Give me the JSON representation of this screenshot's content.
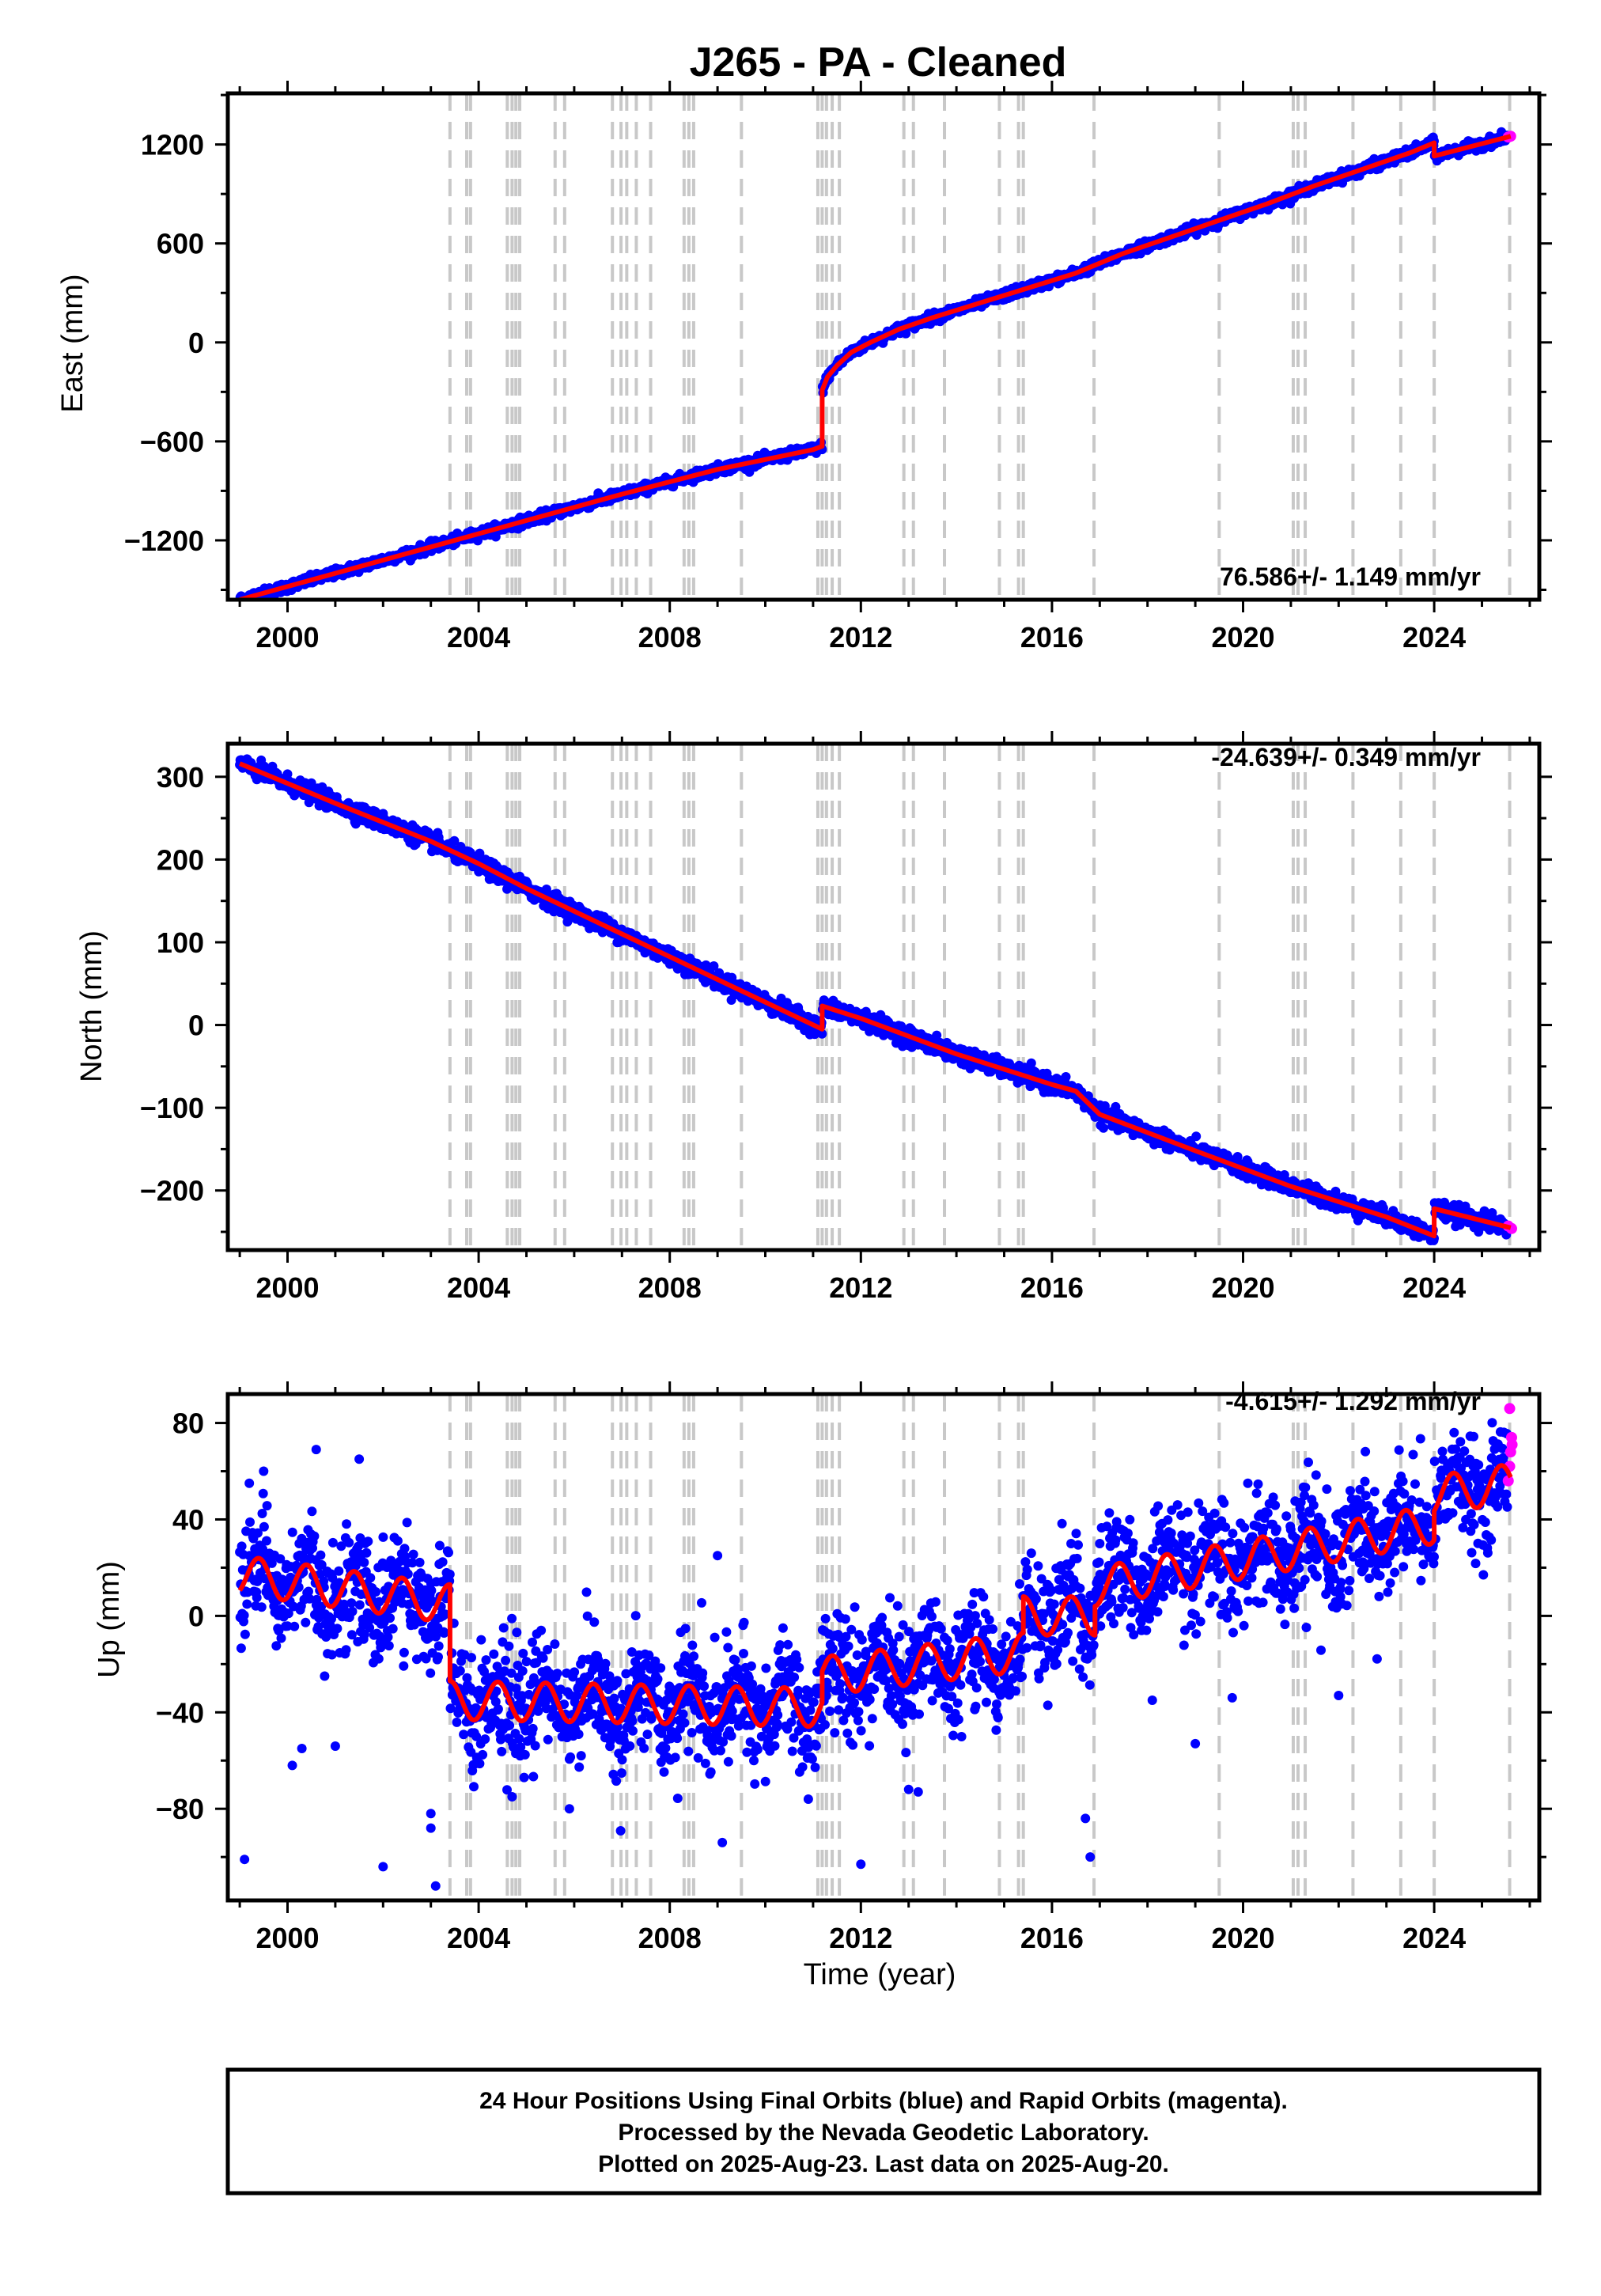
{
  "title": "J265  - PA - Cleaned",
  "footer": {
    "line1": "24 Hour Positions Using Final Orbits (blue) and Rapid Orbits (magenta).",
    "line2": "Processed by the Nevada Geodetic Laboratory.",
    "line3": "Plotted on 2025-Aug-23. Last data on 2025-Aug-20."
  },
  "colors": {
    "final_orbits": "#0000ff",
    "rapid_orbits": "#ff00ff",
    "model": "#ff0000",
    "steps": "#c8c8c8"
  },
  "chart_data": [
    {
      "type": "scatter",
      "ylabel": "East (mm)",
      "xlabel": "",
      "rate": "76.586+/- 1.149 mm/yr",
      "rate_position": "bottom-right",
      "xlim": [
        1998.75,
        2026.2
      ],
      "ylim": [
        -1560,
        1510
      ],
      "xticks": [
        2000,
        2004,
        2008,
        2012,
        2016,
        2020,
        2024
      ],
      "yticks": [
        -1200,
        -600,
        0,
        600,
        1200
      ],
      "yticklabels": [
        "−1200",
        "−600",
        "0",
        "600",
        "1200"
      ],
      "xticklabels": [
        "2000",
        "2004",
        "2008",
        "2012",
        "2016",
        "2020",
        "2024"
      ],
      "model": {
        "x": [
          1999.0,
          2001.0,
          2003.0,
          2005.0,
          2007.0,
          2009.0,
          2011.0,
          2011.19,
          2011.19,
          2011.3,
          2011.5,
          2011.8,
          2012.2,
          2012.8,
          2013.5,
          2014.5,
          2015.5,
          2016.5,
          2017.5,
          2018.5,
          2019.5,
          2020.5,
          2021.5,
          2022.5,
          2023.5,
          2024.0,
          2024.0,
          2025.6
        ],
        "y": [
          -1560,
          -1400,
          -1240,
          -1080,
          -920,
          -770,
          -650,
          -630,
          -290,
          -210,
          -140,
          -60,
          0,
          80,
          150,
          240,
          330,
          420,
          540,
          640,
          740,
          840,
          950,
          1050,
          1150,
          1210,
          1130,
          1250
        ]
      },
      "scatter_spread": 14,
      "rapid_points": [
        [
          2025.55,
          1245
        ],
        [
          2025.6,
          1250
        ]
      ]
    },
    {
      "type": "scatter",
      "ylabel": "North (mm)",
      "xlabel": "",
      "rate": "-24.639+/- 0.349 mm/yr",
      "rate_position": "top-right",
      "xlim": [
        1998.75,
        2026.2
      ],
      "ylim": [
        -272,
        340
      ],
      "xticks": [
        2000,
        2004,
        2008,
        2012,
        2016,
        2020,
        2024
      ],
      "yticks": [
        -200,
        -100,
        0,
        100,
        200,
        300
      ],
      "yticklabels": [
        "−200",
        "−100",
        "0",
        "100",
        "200",
        "300"
      ],
      "xticklabels": [
        "2000",
        "2004",
        "2008",
        "2012",
        "2016",
        "2020",
        "2024"
      ],
      "model": {
        "x": [
          1999.0,
          2001.0,
          2003.0,
          2004.0,
          2005.0,
          2007.0,
          2009.0,
          2011.19,
          2011.19,
          2012.0,
          2014.0,
          2016.0,
          2016.5,
          2017.0,
          2019.0,
          2021.0,
          2023.0,
          2024.0,
          2024.0,
          2025.6
        ],
        "y": [
          316,
          268,
          222,
          195,
          165,
          110,
          55,
          -5,
          23,
          8,
          -35,
          -72,
          -80,
          -108,
          -152,
          -195,
          -232,
          -255,
          -222,
          -245
        ]
      },
      "scatter_spread": 5,
      "rapid_points": [
        [
          2025.55,
          -243
        ],
        [
          2025.62,
          -246
        ]
      ]
    },
    {
      "type": "scatter",
      "ylabel": "Up (mm)",
      "xlabel": "Time (year)",
      "rate": "-4.615+/- 1.292 mm/yr",
      "rate_position": "top-right",
      "xlim": [
        1998.75,
        2026.2
      ],
      "ylim": [
        -118,
        92
      ],
      "xticks": [
        2000,
        2004,
        2008,
        2012,
        2016,
        2020,
        2024
      ],
      "yticks": [
        -80,
        -40,
        0,
        40,
        80
      ],
      "yticklabels": [
        "−80",
        "−40",
        "0",
        "40",
        "80"
      ],
      "xticklabels": [
        "2000",
        "2004",
        "2008",
        "2012",
        "2016",
        "2020",
        "2024"
      ],
      "model": {
        "trend": [
          [
            1999.0,
            17
          ],
          [
            2003.4,
            5
          ],
          [
            2003.4,
            -35
          ],
          [
            2011.19,
            -38
          ],
          [
            2011.19,
            -25
          ],
          [
            2015.4,
            -15
          ],
          [
            2015.4,
            0
          ],
          [
            2016.9,
            0
          ],
          [
            2016.9,
            12
          ],
          [
            2024.0,
            38
          ],
          [
            2024.0,
            50
          ],
          [
            2025.6,
            55
          ]
        ],
        "annual_amplitude": 8
      },
      "scatter_spread": 11,
      "outliers": [
        [
          1999.1,
          -101
        ],
        [
          2000.1,
          -62
        ],
        [
          2000.3,
          -55
        ],
        [
          2001.0,
          -54
        ],
        [
          2002.0,
          -104
        ],
        [
          2003.0,
          -82
        ],
        [
          2003.0,
          -88
        ],
        [
          2003.1,
          -112
        ],
        [
          2004.7,
          -75
        ],
        [
          2005.9,
          -80
        ],
        [
          2009.1,
          -94
        ],
        [
          2010.9,
          -76
        ],
        [
          2012.0,
          -103
        ],
        [
          2013.0,
          -72
        ],
        [
          2013.2,
          -73
        ],
        [
          2016.7,
          -84
        ],
        [
          2016.8,
          -100
        ],
        [
          2018.1,
          -35
        ],
        [
          2019.0,
          -53
        ],
        [
          2022.0,
          -33
        ],
        [
          2001.5,
          65
        ],
        [
          2000.6,
          69
        ],
        [
          1999.5,
          60
        ],
        [
          1999.2,
          55
        ],
        [
          2016.4,
          30
        ],
        [
          2017.0,
          30
        ],
        [
          2009.0,
          25
        ],
        [
          2020.1,
          55
        ]
      ],
      "rapid_points": [
        [
          2025.55,
          56
        ],
        [
          2025.58,
          62
        ],
        [
          2025.6,
          68
        ],
        [
          2025.62,
          74
        ],
        [
          2025.58,
          86
        ],
        [
          2025.63,
          71
        ]
      ]
    }
  ],
  "steps": [
    2003.4,
    2003.75,
    2003.83,
    2004.6,
    2004.7,
    2004.78,
    2004.86,
    2005.6,
    2005.8,
    2006.8,
    2006.98,
    2007.1,
    2007.3,
    2007.6,
    2008.3,
    2008.4,
    2008.5,
    2009.5,
    2011.1,
    2011.19,
    2011.28,
    2011.4,
    2011.55,
    2012.9,
    2013.1,
    2013.75,
    2014.9,
    2015.3,
    2015.4,
    2016.88,
    2019.5,
    2021.05,
    2021.15,
    2021.3,
    2022.3,
    2023.3,
    2024.0,
    2025.58
  ]
}
